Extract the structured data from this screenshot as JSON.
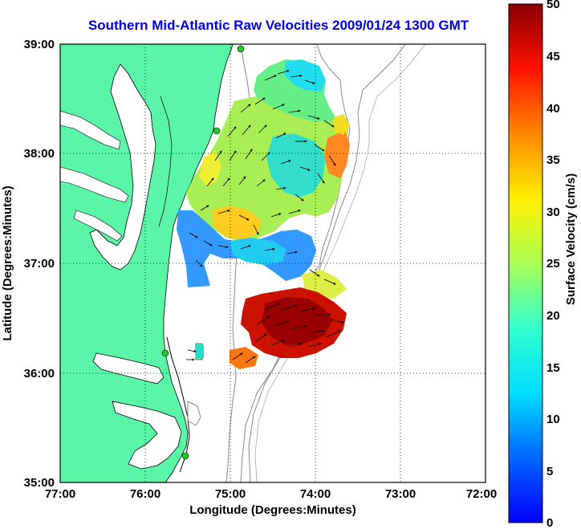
{
  "title": "Southern Mid-Atlantic Raw Velocities 2009/01/24 1300 GMT",
  "axes": {
    "xlabel": "Longitude (Degrees:Minutes)",
    "ylabel": "Latitude (Degrees:Minutes)",
    "x_ticks": [
      "77:00",
      "76:00",
      "75:00",
      "74:00",
      "73:00",
      "72:00"
    ],
    "y_ticks": [
      "39:00",
      "38:00",
      "37:00",
      "36:00",
      "35:00"
    ],
    "x_range_deg_west": [
      77,
      72
    ],
    "y_range_deg_north": [
      35,
      39
    ],
    "grid": "dotted"
  },
  "colorbar": {
    "label": "Surface Velocity (cm/s)",
    "ticks": [
      "0",
      "5",
      "10",
      "15",
      "20",
      "25",
      "30",
      "35",
      "40",
      "45",
      "50"
    ],
    "range": [
      0,
      50
    ],
    "colormap": "jet"
  },
  "colors": {
    "land": "#5bf5a8",
    "water": "#ffffff",
    "bathymetry": "#888888",
    "title": "#0000ee",
    "site_marker": "#22cc22"
  }
}
